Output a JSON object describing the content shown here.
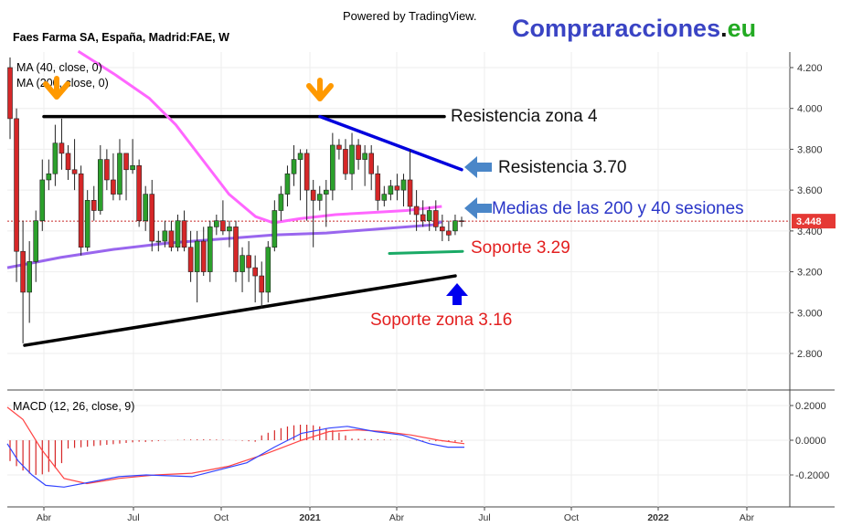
{
  "header": {
    "powered_by": "Powered by TradingView.",
    "brand_main": "Compraracciones",
    "brand_dot": ".",
    "brand_tld": "eu",
    "symbol_title": "Faes Farma SA, España, Madrid:FAE, W"
  },
  "colors": {
    "up": "#26a69a",
    "up_candle": "#2ca02c",
    "down": "#d62728",
    "ma40": "#ff66ff",
    "ma200": "#9966ee",
    "macd_line": "#3344ff",
    "signal_line": "#ff4444",
    "price_badge": "#e53935",
    "brand_blue": "#3a44c4",
    "brand_green": "#22aa22",
    "arrow_orange": "#ff9900",
    "arrow_steel": "#4a86c8",
    "arrow_blue": "#0000ee",
    "support_line": "#1aaa66"
  },
  "chart_data": {
    "type": "candlestick",
    "price_axis": {
      "ticks": [
        "4.200",
        "4.000",
        "3.800",
        "3.600",
        "3.400",
        "3.200",
        "3.000",
        "2.800"
      ],
      "range": [
        2.62,
        4.28
      ]
    },
    "macd_axis": {
      "ticks": [
        "0.2000",
        "0.0000",
        "-0.2000"
      ],
      "range": [
        -0.36,
        0.23
      ]
    },
    "time_axis": {
      "labels": [
        "Abr",
        "Jul",
        "Oct",
        "2021",
        "Abr",
        "Jul",
        "Oct",
        "2022",
        "Abr"
      ]
    },
    "current_price": 3.448,
    "current_price_label": "3.448",
    "indicators": {
      "ma40_label": "MA (40, close, 0)",
      "ma200_label": "MA (200, close, 0)",
      "macd_label": "MACD (12, 26, close, 9)"
    },
    "candles": [
      {
        "o": 4.2,
        "h": 4.25,
        "l": 3.85,
        "c": 3.95
      },
      {
        "o": 3.95,
        "h": 4.0,
        "l": 3.15,
        "c": 3.3
      },
      {
        "o": 3.3,
        "h": 3.45,
        "l": 2.85,
        "c": 3.1
      },
      {
        "o": 3.1,
        "h": 3.35,
        "l": 2.95,
        "c": 3.25
      },
      {
        "o": 3.25,
        "h": 3.5,
        "l": 3.15,
        "c": 3.45
      },
      {
        "o": 3.45,
        "h": 3.75,
        "l": 3.4,
        "c": 3.65
      },
      {
        "o": 3.65,
        "h": 3.75,
        "l": 3.6,
        "c": 3.68
      },
      {
        "o": 3.68,
        "h": 3.92,
        "l": 3.62,
        "c": 3.83
      },
      {
        "o": 3.83,
        "h": 3.95,
        "l": 3.7,
        "c": 3.78
      },
      {
        "o": 3.78,
        "h": 3.82,
        "l": 3.65,
        "c": 3.7
      },
      {
        "o": 3.7,
        "h": 3.85,
        "l": 3.6,
        "c": 3.68
      },
      {
        "o": 3.68,
        "h": 3.72,
        "l": 3.28,
        "c": 3.32
      },
      {
        "o": 3.32,
        "h": 3.6,
        "l": 3.3,
        "c": 3.55
      },
      {
        "o": 3.55,
        "h": 3.62,
        "l": 3.45,
        "c": 3.5
      },
      {
        "o": 3.5,
        "h": 3.82,
        "l": 3.48,
        "c": 3.75
      },
      {
        "o": 3.75,
        "h": 3.8,
        "l": 3.6,
        "c": 3.65
      },
      {
        "o": 3.65,
        "h": 3.78,
        "l": 3.55,
        "c": 3.58
      },
      {
        "o": 3.58,
        "h": 3.85,
        "l": 3.55,
        "c": 3.78
      },
      {
        "o": 3.78,
        "h": 3.78,
        "l": 3.55,
        "c": 3.7
      },
      {
        "o": 3.7,
        "h": 3.85,
        "l": 3.68,
        "c": 3.72
      },
      {
        "o": 3.72,
        "h": 3.75,
        "l": 3.42,
        "c": 3.45
      },
      {
        "o": 3.45,
        "h": 3.62,
        "l": 3.4,
        "c": 3.58
      },
      {
        "o": 3.58,
        "h": 3.65,
        "l": 3.3,
        "c": 3.35
      },
      {
        "o": 3.35,
        "h": 3.4,
        "l": 3.3,
        "c": 3.35
      },
      {
        "o": 3.35,
        "h": 3.45,
        "l": 3.32,
        "c": 3.4
      },
      {
        "o": 3.4,
        "h": 3.45,
        "l": 3.3,
        "c": 3.32
      },
      {
        "o": 3.32,
        "h": 3.48,
        "l": 3.3,
        "c": 3.45
      },
      {
        "o": 3.45,
        "h": 3.5,
        "l": 3.3,
        "c": 3.32
      },
      {
        "o": 3.32,
        "h": 3.4,
        "l": 3.15,
        "c": 3.2
      },
      {
        "o": 3.2,
        "h": 3.4,
        "l": 3.05,
        "c": 3.35
      },
      {
        "o": 3.35,
        "h": 3.42,
        "l": 3.18,
        "c": 3.2
      },
      {
        "o": 3.2,
        "h": 3.45,
        "l": 3.15,
        "c": 3.42
      },
      {
        "o": 3.42,
        "h": 3.48,
        "l": 3.38,
        "c": 3.45
      },
      {
        "o": 3.45,
        "h": 3.55,
        "l": 3.38,
        "c": 3.4
      },
      {
        "o": 3.4,
        "h": 3.45,
        "l": 3.32,
        "c": 3.42
      },
      {
        "o": 3.42,
        "h": 3.45,
        "l": 3.15,
        "c": 3.2
      },
      {
        "o": 3.2,
        "h": 3.32,
        "l": 3.1,
        "c": 3.28
      },
      {
        "o": 3.28,
        "h": 3.35,
        "l": 3.15,
        "c": 3.22
      },
      {
        "o": 3.22,
        "h": 3.28,
        "l": 3.05,
        "c": 3.18
      },
      {
        "o": 3.18,
        "h": 3.25,
        "l": 3.02,
        "c": 3.1
      },
      {
        "o": 3.1,
        "h": 3.35,
        "l": 3.05,
        "c": 3.32
      },
      {
        "o": 3.32,
        "h": 3.55,
        "l": 3.3,
        "c": 3.5
      },
      {
        "o": 3.5,
        "h": 3.62,
        "l": 3.45,
        "c": 3.58
      },
      {
        "o": 3.58,
        "h": 3.72,
        "l": 3.52,
        "c": 3.68
      },
      {
        "o": 3.68,
        "h": 3.82,
        "l": 3.62,
        "c": 3.75
      },
      {
        "o": 3.75,
        "h": 3.8,
        "l": 3.55,
        "c": 3.78
      },
      {
        "o": 3.78,
        "h": 3.8,
        "l": 3.45,
        "c": 3.6
      },
      {
        "o": 3.6,
        "h": 3.65,
        "l": 3.32,
        "c": 3.55
      },
      {
        "o": 3.55,
        "h": 3.62,
        "l": 3.5,
        "c": 3.58
      },
      {
        "o": 3.58,
        "h": 3.65,
        "l": 3.42,
        "c": 3.6
      },
      {
        "o": 3.6,
        "h": 3.88,
        "l": 3.55,
        "c": 3.82
      },
      {
        "o": 3.82,
        "h": 3.85,
        "l": 3.75,
        "c": 3.8
      },
      {
        "o": 3.8,
        "h": 3.85,
        "l": 3.65,
        "c": 3.68
      },
      {
        "o": 3.68,
        "h": 3.88,
        "l": 3.6,
        "c": 3.82
      },
      {
        "o": 3.82,
        "h": 3.85,
        "l": 3.7,
        "c": 3.75
      },
      {
        "o": 3.75,
        "h": 3.82,
        "l": 3.62,
        "c": 3.78
      },
      {
        "o": 3.78,
        "h": 3.82,
        "l": 3.6,
        "c": 3.68
      },
      {
        "o": 3.68,
        "h": 3.72,
        "l": 3.5,
        "c": 3.55
      },
      {
        "o": 3.55,
        "h": 3.62,
        "l": 3.52,
        "c": 3.58
      },
      {
        "o": 3.58,
        "h": 3.65,
        "l": 3.55,
        "c": 3.62
      },
      {
        "o": 3.62,
        "h": 3.68,
        "l": 3.55,
        "c": 3.6
      },
      {
        "o": 3.6,
        "h": 3.68,
        "l": 3.52,
        "c": 3.65
      },
      {
        "o": 3.65,
        "h": 3.8,
        "l": 3.48,
        "c": 3.52
      },
      {
        "o": 3.52,
        "h": 3.6,
        "l": 3.4,
        "c": 3.48
      },
      {
        "o": 3.48,
        "h": 3.55,
        "l": 3.42,
        "c": 3.45
      },
      {
        "o": 3.45,
        "h": 3.52,
        "l": 3.4,
        "c": 3.5
      },
      {
        "o": 3.5,
        "h": 3.55,
        "l": 3.4,
        "c": 3.42
      },
      {
        "o": 3.42,
        "h": 3.48,
        "l": 3.35,
        "c": 3.4
      },
      {
        "o": 3.4,
        "h": 3.45,
        "l": 3.35,
        "c": 3.38
      },
      {
        "o": 3.4,
        "h": 3.48,
        "l": 3.38,
        "c": 3.45
      },
      {
        "o": 3.45,
        "h": 3.47,
        "l": 3.42,
        "c": 3.448
      }
    ],
    "ma40": [
      [
        2.3,
        4.5
      ],
      [
        2.5,
        4.3
      ],
      [
        3,
        4.2
      ],
      [
        3.5,
        4.1
      ],
      [
        4,
        4.0
      ],
      [
        4.5,
        3.85
      ],
      [
        5,
        3.7
      ],
      [
        5.5,
        3.55
      ],
      [
        6,
        3.45
      ],
      [
        6.5,
        3.42
      ],
      [
        7,
        3.45
      ],
      [
        7.5,
        3.47
      ],
      [
        8,
        3.48
      ],
      [
        8.5,
        3.5
      ],
      [
        9,
        3.5
      ],
      [
        9.5,
        3.51
      ]
    ],
    "ma200": [
      [
        0,
        3.22
      ],
      [
        2,
        3.3
      ],
      [
        4,
        3.36
      ],
      [
        6,
        3.39
      ],
      [
        8,
        3.42
      ],
      [
        9.5,
        3.46
      ]
    ],
    "annotations": {
      "resistance_zone": "Resistencia zona 4",
      "resistance_line": "Resistencia 3.70",
      "moving_averages": "Medias de las 200 y 40 sesiones",
      "support_line": "Soporte 3.29",
      "support_zone": "Soporte zona 3.16"
    },
    "trendlines": [
      {
        "name": "resistance-zone-line",
        "from": [
          1,
          3.96
        ],
        "to": [
          10.3,
          3.96
        ]
      },
      {
        "name": "resistance-line",
        "from": [
          7.4,
          3.96
        ],
        "to": [
          10.7,
          3.7
        ]
      },
      {
        "name": "support-line",
        "from": [
          9,
          3.3
        ],
        "to": [
          10.8,
          3.3
        ]
      },
      {
        "name": "support-zone-line",
        "from": [
          0.4,
          2.84
        ],
        "to": [
          10.8,
          3.18
        ]
      }
    ]
  }
}
